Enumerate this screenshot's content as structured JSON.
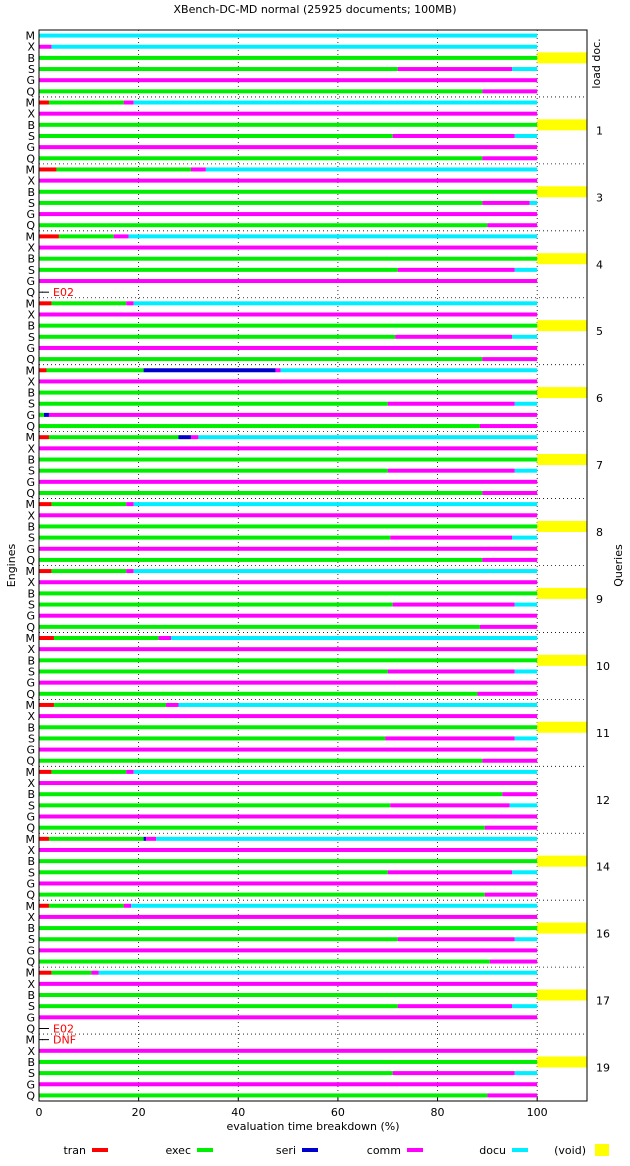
{
  "chart_data": {
    "type": "bar",
    "orientation": "horizontal-stacked",
    "title": "XBench-DC-MD normal (25925 documents; 100MB)",
    "xlabel": "evaluation time breakdown (%)",
    "ylabel_left": "Engines",
    "ylabel_right": "Queries",
    "xlim": [
      0,
      110
    ],
    "xticks": [
      "0",
      "20",
      "40",
      "60",
      "80",
      "100"
    ],
    "grid": true,
    "legend_position": "bottom",
    "legend": [
      {
        "key": "tran",
        "label": "tran",
        "color": "#ff0000"
      },
      {
        "key": "exec",
        "label": "exec",
        "color": "#00ee00"
      },
      {
        "key": "seri",
        "label": "seri",
        "color": "#0000cc"
      },
      {
        "key": "comm",
        "label": "comm",
        "color": "#ff00ff"
      },
      {
        "key": "docu",
        "label": "docu",
        "color": "#00eeff"
      },
      {
        "key": "void",
        "label": "(void)",
        "color": "#ffff00"
      }
    ],
    "engines": [
      "M",
      "X",
      "B",
      "S",
      "G",
      "Q"
    ],
    "groups": [
      {
        "query": "load doc.",
        "rows": {
          "M": [
            [
              "docu",
              100
            ]
          ],
          "X": [
            [
              "comm",
              2.5
            ],
            [
              "docu",
              97.5
            ]
          ],
          "B": [
            [
              "exec",
              100
            ],
            [
              "void",
              10
            ]
          ],
          "S": [
            [
              "exec",
              72
            ],
            [
              "comm",
              23
            ],
            [
              "docu",
              5
            ]
          ],
          "G": [
            [
              "comm",
              100
            ]
          ],
          "Q": [
            [
              "exec",
              89
            ],
            [
              "comm",
              11
            ]
          ]
        }
      },
      {
        "query": "1",
        "rows": {
          "M": [
            [
              "tran",
              2
            ],
            [
              "exec",
              15
            ],
            [
              "comm",
              2
            ],
            [
              "docu",
              81
            ]
          ],
          "X": [
            [
              "comm",
              100
            ]
          ],
          "B": [
            [
              "exec",
              100
            ],
            [
              "void",
              10
            ]
          ],
          "S": [
            [
              "exec",
              71
            ],
            [
              "comm",
              24.5
            ],
            [
              "docu",
              4.5
            ]
          ],
          "G": [
            [
              "comm",
              100
            ]
          ],
          "Q": [
            [
              "exec",
              89
            ],
            [
              "comm",
              11
            ]
          ]
        }
      },
      {
        "query": "3",
        "rows": {
          "M": [
            [
              "tran",
              3.5
            ],
            [
              "exec",
              27
            ],
            [
              "comm",
              3
            ],
            [
              "docu",
              66.5
            ]
          ],
          "X": [
            [
              "comm",
              100
            ]
          ],
          "B": [
            [
              "exec",
              100
            ],
            [
              "void",
              10
            ]
          ],
          "S": [
            [
              "exec",
              89
            ],
            [
              "comm",
              9.5
            ],
            [
              "docu",
              1.5
            ]
          ],
          "G": [
            [
              "comm",
              100
            ]
          ],
          "Q": [
            [
              "exec",
              90
            ],
            [
              "comm",
              10
            ]
          ]
        }
      },
      {
        "query": "4",
        "note": "E02",
        "rows": {
          "M": [
            [
              "tran",
              4
            ],
            [
              "exec",
              11
            ],
            [
              "comm",
              3
            ],
            [
              "docu",
              82
            ]
          ],
          "X": [
            [
              "comm",
              100
            ]
          ],
          "B": [
            [
              "exec",
              100
            ],
            [
              "void",
              10
            ]
          ],
          "S": [
            [
              "exec",
              72
            ],
            [
              "comm",
              23.5
            ],
            [
              "docu",
              4.5
            ]
          ],
          "G": [
            [
              "comm",
              100
            ]
          ],
          "Q": []
        }
      },
      {
        "query": "5",
        "rows": {
          "M": [
            [
              "tran",
              2.5
            ],
            [
              "exec",
              15
            ],
            [
              "comm",
              1.5
            ],
            [
              "docu",
              81
            ]
          ],
          "X": [
            [
              "comm",
              100
            ]
          ],
          "B": [
            [
              "exec",
              100
            ],
            [
              "void",
              10
            ]
          ],
          "S": [
            [
              "exec",
              71.5
            ],
            [
              "comm",
              23.5
            ],
            [
              "docu",
              5
            ]
          ],
          "G": [
            [
              "comm",
              100
            ]
          ],
          "Q": [
            [
              "exec",
              89
            ],
            [
              "comm",
              11
            ]
          ]
        }
      },
      {
        "query": "6",
        "rows": {
          "M": [
            [
              "tran",
              1.5
            ],
            [
              "exec",
              19.5
            ],
            [
              "seri",
              26.5
            ],
            [
              "comm",
              1
            ],
            [
              "docu",
              51.5
            ]
          ],
          "X": [
            [
              "comm",
              100
            ]
          ],
          "B": [
            [
              "exec",
              100
            ],
            [
              "void",
              10
            ]
          ],
          "S": [
            [
              "exec",
              70
            ],
            [
              "comm",
              25.5
            ],
            [
              "docu",
              4.5
            ]
          ],
          "G": [
            [
              "exec",
              1
            ],
            [
              "seri",
              1
            ],
            [
              "comm",
              98
            ]
          ],
          "Q": [
            [
              "exec",
              88.5
            ],
            [
              "comm",
              11.5
            ]
          ]
        }
      },
      {
        "query": "7",
        "rows": {
          "M": [
            [
              "tran",
              2
            ],
            [
              "exec",
              26
            ],
            [
              "seri",
              2.5
            ],
            [
              "comm",
              1.5
            ],
            [
              "docu",
              68
            ]
          ],
          "X": [
            [
              "comm",
              100
            ]
          ],
          "B": [
            [
              "exec",
              100
            ],
            [
              "void",
              10
            ]
          ],
          "S": [
            [
              "exec",
              70
            ],
            [
              "comm",
              25.5
            ],
            [
              "docu",
              4.5
            ]
          ],
          "G": [
            [
              "comm",
              100
            ]
          ],
          "Q": [
            [
              "exec",
              89
            ],
            [
              "comm",
              11
            ]
          ]
        }
      },
      {
        "query": "8",
        "rows": {
          "M": [
            [
              "tran",
              2.5
            ],
            [
              "exec",
              15
            ],
            [
              "comm",
              1.5
            ],
            [
              "docu",
              81
            ]
          ],
          "X": [
            [
              "comm",
              100
            ]
          ],
          "B": [
            [
              "exec",
              100
            ],
            [
              "void",
              10
            ]
          ],
          "S": [
            [
              "exec",
              70.5
            ],
            [
              "comm",
              24.5
            ],
            [
              "docu",
              5
            ]
          ],
          "G": [
            [
              "comm",
              100
            ]
          ],
          "Q": [
            [
              "exec",
              89
            ],
            [
              "comm",
              11
            ]
          ]
        }
      },
      {
        "query": "9",
        "rows": {
          "M": [
            [
              "tran",
              2.5
            ],
            [
              "exec",
              15
            ],
            [
              "comm",
              1.5
            ],
            [
              "docu",
              81
            ]
          ],
          "X": [
            [
              "comm",
              100
            ]
          ],
          "B": [
            [
              "exec",
              100
            ],
            [
              "void",
              10
            ]
          ],
          "S": [
            [
              "exec",
              71
            ],
            [
              "comm",
              24.5
            ],
            [
              "docu",
              4.5
            ]
          ],
          "G": [
            [
              "comm",
              100
            ]
          ],
          "Q": [
            [
              "exec",
              88.5
            ],
            [
              "comm",
              11.5
            ]
          ]
        }
      },
      {
        "query": "10",
        "rows": {
          "M": [
            [
              "tran",
              3
            ],
            [
              "exec",
              21
            ],
            [
              "comm",
              2.5
            ],
            [
              "docu",
              73.5
            ]
          ],
          "X": [
            [
              "comm",
              100
            ]
          ],
          "B": [
            [
              "exec",
              100
            ],
            [
              "void",
              10
            ]
          ],
          "S": [
            [
              "exec",
              70
            ],
            [
              "comm",
              25.5
            ],
            [
              "docu",
              4.5
            ]
          ],
          "G": [
            [
              "comm",
              100
            ]
          ],
          "Q": [
            [
              "exec",
              88
            ],
            [
              "comm",
              12
            ]
          ]
        }
      },
      {
        "query": "11",
        "rows": {
          "M": [
            [
              "tran",
              3
            ],
            [
              "exec",
              22.5
            ],
            [
              "comm",
              2.5
            ],
            [
              "docu",
              72
            ]
          ],
          "X": [
            [
              "comm",
              100
            ]
          ],
          "B": [
            [
              "exec",
              100
            ],
            [
              "void",
              10
            ]
          ],
          "S": [
            [
              "exec",
              69.5
            ],
            [
              "comm",
              26
            ],
            [
              "docu",
              4.5
            ]
          ],
          "G": [
            [
              "comm",
              100
            ]
          ],
          "Q": [
            [
              "exec",
              89
            ],
            [
              "comm",
              11
            ]
          ]
        }
      },
      {
        "query": "12",
        "rows": {
          "M": [
            [
              "tran",
              2.5
            ],
            [
              "exec",
              15
            ],
            [
              "comm",
              1.5
            ],
            [
              "docu",
              81
            ]
          ],
          "X": [
            [
              "comm",
              100
            ]
          ],
          "B": [
            [
              "exec",
              93
            ],
            [
              "comm",
              7
            ]
          ],
          "S": [
            [
              "exec",
              70.5
            ],
            [
              "comm",
              24
            ],
            [
              "docu",
              5.5
            ]
          ],
          "G": [
            [
              "comm",
              100
            ]
          ],
          "Q": [
            [
              "exec",
              89.5
            ],
            [
              "comm",
              10.5
            ]
          ]
        }
      },
      {
        "query": "14",
        "rows": {
          "M": [
            [
              "tran",
              2
            ],
            [
              "exec",
              19
            ],
            [
              "seri",
              0.5
            ],
            [
              "comm",
              2
            ],
            [
              "docu",
              76.5
            ]
          ],
          "X": [
            [
              "comm",
              100
            ]
          ],
          "B": [
            [
              "exec",
              100
            ],
            [
              "void",
              10
            ]
          ],
          "S": [
            [
              "exec",
              70
            ],
            [
              "comm",
              25
            ],
            [
              "docu",
              5
            ]
          ],
          "G": [
            [
              "comm",
              100
            ]
          ],
          "Q": [
            [
              "exec",
              89.5
            ],
            [
              "comm",
              10.5
            ]
          ]
        }
      },
      {
        "query": "16",
        "rows": {
          "M": [
            [
              "tran",
              2
            ],
            [
              "exec",
              15
            ],
            [
              "comm",
              1.5
            ],
            [
              "docu",
              81.5
            ]
          ],
          "X": [
            [
              "comm",
              100
            ]
          ],
          "B": [
            [
              "exec",
              100
            ],
            [
              "void",
              10
            ]
          ],
          "S": [
            [
              "exec",
              72
            ],
            [
              "comm",
              23.5
            ],
            [
              "docu",
              4.5
            ]
          ],
          "G": [
            [
              "comm",
              100
            ]
          ],
          "Q": [
            [
              "exec",
              90.5
            ],
            [
              "comm",
              9.5
            ]
          ]
        }
      },
      {
        "query": "17",
        "note": "E02",
        "rows": {
          "M": [
            [
              "tran",
              2.5
            ],
            [
              "exec",
              8
            ],
            [
              "comm",
              1.5
            ],
            [
              "docu",
              88
            ]
          ],
          "X": [
            [
              "comm",
              100
            ]
          ],
          "B": [
            [
              "exec",
              100
            ],
            [
              "void",
              10
            ]
          ],
          "S": [
            [
              "exec",
              72
            ],
            [
              "comm",
              23
            ],
            [
              "docu",
              5
            ]
          ],
          "G": [
            [
              "comm",
              100
            ]
          ],
          "Q": []
        }
      },
      {
        "query": "19",
        "note": "DNF",
        "rows": {
          "M": [],
          "X": [
            [
              "comm",
              100
            ]
          ],
          "B": [
            [
              "exec",
              100
            ],
            [
              "void",
              10
            ]
          ],
          "S": [
            [
              "exec",
              71
            ],
            [
              "comm",
              24.5
            ],
            [
              "docu",
              4.5
            ]
          ],
          "G": [
            [
              "comm",
              100
            ]
          ],
          "Q": [
            [
              "exec",
              90
            ],
            [
              "comm",
              10
            ]
          ]
        }
      }
    ]
  }
}
